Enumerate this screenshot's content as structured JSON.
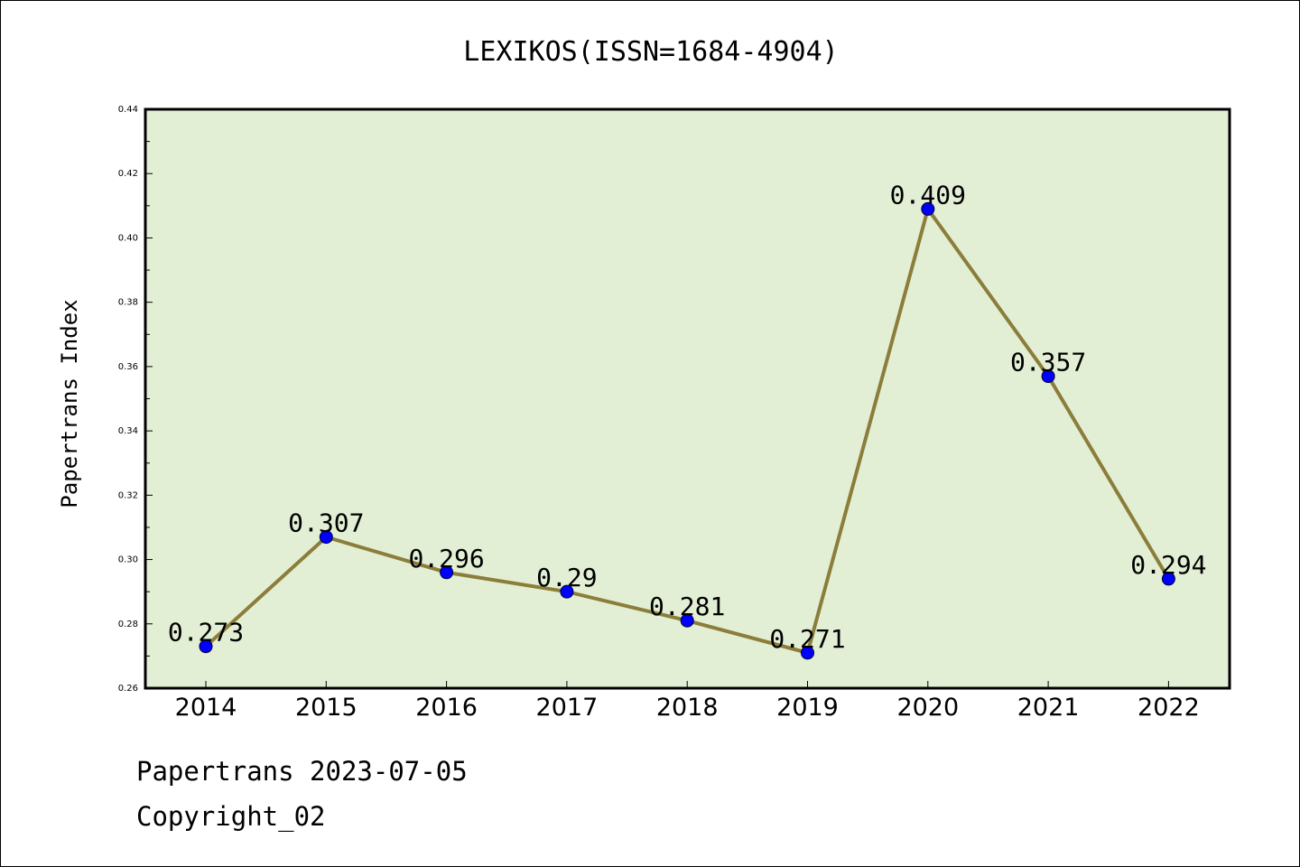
{
  "footer": {
    "line1": "Papertrans 2023-07-05",
    "line2": "Copyright_02"
  },
  "colors": {
    "plot_background": "#e2efd5",
    "line": "#8b7d3a",
    "marker": "#0000ff",
    "axes": "#000000"
  },
  "chart_data": {
    "type": "line",
    "title": "LEXIKOS(ISSN=1684-4904)",
    "xlabel": "",
    "ylabel": "Papertrans Index",
    "categories": [
      "2014",
      "2015",
      "2016",
      "2017",
      "2018",
      "2019",
      "2020",
      "2021",
      "2022"
    ],
    "series": [
      {
        "values": [
          0.273,
          0.307,
          0.296,
          0.29,
          0.281,
          0.271,
          0.409,
          0.357,
          0.294
        ],
        "data_labels": [
          "0.273",
          "0.307",
          "0.296",
          "0.29",
          "0.281",
          "0.271",
          "0.409",
          "0.357",
          "0.294"
        ]
      }
    ],
    "ylim": [
      0.26,
      0.44
    ],
    "yticks": [
      "0.26",
      "0.28",
      "0.30",
      "0.32",
      "0.34",
      "0.36",
      "0.38",
      "0.40",
      "0.42",
      "0.44"
    ],
    "grid": false,
    "legend": "none"
  }
}
